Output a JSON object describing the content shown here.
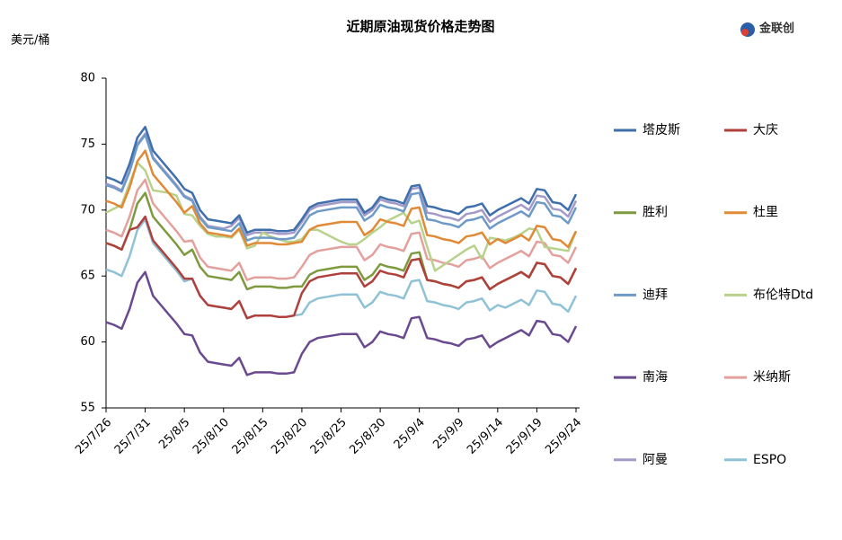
{
  "chart_data": {
    "type": "line",
    "title": "近期原油现货价格走势图",
    "y_label": "美元/桶",
    "logo": "金联创",
    "categories": [
      "25/7/26",
      null,
      null,
      null,
      null,
      "25/7/31",
      null,
      null,
      null,
      null,
      "25/8/5",
      null,
      null,
      null,
      null,
      "25/8/10",
      null,
      null,
      null,
      null,
      "25/8/15",
      null,
      null,
      null,
      null,
      "25/8/20",
      null,
      null,
      null,
      null,
      "25/8/25",
      null,
      null,
      null,
      null,
      "25/8/30",
      null,
      null,
      null,
      null,
      "25/9/4",
      null,
      null,
      null,
      null,
      "25/9/9",
      null,
      null,
      null,
      null,
      "25/9/14",
      null,
      null,
      null,
      null,
      "25/9/19",
      null,
      null,
      null,
      null,
      "25/9/24"
    ],
    "ylim": [
      55,
      80
    ],
    "yticks": [
      55,
      60,
      65,
      70,
      75,
      80
    ],
    "grid": false,
    "legend": "right",
    "series": [
      {
        "name": "塔皮斯",
        "color": "#3f6fad",
        "values": [
          72.5,
          72.3,
          72.0,
          73.5,
          75.5,
          76.3,
          74.5,
          73.8,
          73.1,
          72.4,
          71.6,
          71.3,
          70.0,
          69.3,
          69.2,
          69.1,
          69.0,
          69.6,
          68.3,
          68.5,
          68.5,
          68.5,
          68.4,
          68.4,
          68.5,
          69.3,
          70.2,
          70.5,
          70.6,
          70.7,
          70.8,
          70.8,
          70.8,
          69.8,
          70.2,
          71.0,
          70.8,
          70.7,
          70.5,
          71.8,
          71.9,
          70.3,
          70.2,
          70.0,
          69.9,
          69.7,
          70.2,
          70.3,
          70.5,
          69.6,
          70.0,
          70.3,
          70.6,
          70.9,
          70.5,
          71.6,
          71.5,
          70.6,
          70.5,
          70.0,
          71.2
        ]
      },
      {
        "name": "大庆",
        "color": "#b0403c",
        "values": [
          67.5,
          67.3,
          67.0,
          68.5,
          68.7,
          69.5,
          67.7,
          67.0,
          66.3,
          65.6,
          64.8,
          64.8,
          63.5,
          62.8,
          62.7,
          62.6,
          62.5,
          63.1,
          61.8,
          62.0,
          62.0,
          62.0,
          61.9,
          61.9,
          62.0,
          63.7,
          64.6,
          64.9,
          65.0,
          65.1,
          65.2,
          65.2,
          65.2,
          64.2,
          64.6,
          65.4,
          65.2,
          65.1,
          64.9,
          66.2,
          66.3,
          64.7,
          64.6,
          64.4,
          64.3,
          64.1,
          64.6,
          64.7,
          64.9,
          64.0,
          64.4,
          64.7,
          65.0,
          65.3,
          64.9,
          66.0,
          65.9,
          65.0,
          64.9,
          64.4,
          65.6
        ]
      },
      {
        "name": "胜利",
        "color": "#7e9a3e",
        "values": [
          67.5,
          67.3,
          67.0,
          68.5,
          70.5,
          71.3,
          69.5,
          68.8,
          68.1,
          67.4,
          66.6,
          67.0,
          65.7,
          65.0,
          64.9,
          64.8,
          64.7,
          65.3,
          64.0,
          64.2,
          64.2,
          64.2,
          64.1,
          64.1,
          64.2,
          64.2,
          65.1,
          65.4,
          65.5,
          65.6,
          65.7,
          65.7,
          65.7,
          64.7,
          65.1,
          65.9,
          65.7,
          65.6,
          65.4,
          66.7,
          66.8,
          64.7,
          64.6,
          64.4,
          64.3,
          64.1,
          64.6,
          64.7,
          64.9,
          64.0,
          64.4,
          64.7,
          65.0,
          65.3,
          64.9,
          66.0,
          65.9,
          65.0,
          64.9,
          64.4,
          65.6
        ]
      },
      {
        "name": "杜里",
        "color": "#e08a37",
        "values": [
          70.7,
          70.5,
          70.2,
          71.7,
          73.7,
          74.5,
          72.7,
          72.0,
          71.3,
          70.6,
          69.8,
          70.3,
          69.0,
          68.3,
          68.2,
          68.1,
          68.0,
          68.6,
          67.3,
          67.5,
          67.5,
          67.5,
          67.4,
          67.4,
          67.5,
          67.6,
          68.5,
          68.8,
          68.9,
          69.0,
          69.1,
          69.1,
          69.1,
          68.1,
          68.5,
          69.3,
          69.1,
          69.0,
          68.8,
          70.1,
          70.2,
          68.1,
          68.0,
          67.8,
          67.7,
          67.5,
          68.0,
          68.1,
          68.3,
          67.4,
          67.8,
          67.5,
          67.8,
          68.1,
          67.7,
          68.8,
          68.7,
          67.8,
          67.7,
          67.2,
          68.4
        ]
      },
      {
        "name": "迪拜",
        "color": "#6d9ac6",
        "values": [
          71.9,
          71.7,
          71.4,
          72.9,
          74.9,
          75.7,
          73.9,
          73.2,
          72.5,
          71.8,
          71.0,
          70.7,
          69.4,
          68.7,
          68.6,
          68.5,
          68.4,
          69.0,
          67.7,
          67.9,
          67.9,
          67.9,
          67.8,
          67.8,
          67.9,
          68.7,
          69.6,
          69.9,
          70.0,
          70.1,
          70.2,
          70.2,
          70.2,
          69.2,
          69.6,
          70.4,
          70.2,
          70.1,
          69.9,
          71.2,
          71.3,
          69.3,
          69.2,
          69.0,
          68.9,
          68.7,
          69.2,
          69.3,
          69.5,
          68.6,
          69.0,
          69.3,
          69.6,
          69.9,
          69.5,
          70.6,
          70.5,
          69.6,
          69.5,
          69.0,
          70.2
        ]
      },
      {
        "name": "布伦特Dtd",
        "color": "#b8d28c",
        "values": [
          69.8,
          70.1,
          70.4,
          72.0,
          73.6,
          73.0,
          71.5,
          71.4,
          71.3,
          71.1,
          69.7,
          69.6,
          68.8,
          68.2,
          68.0,
          68.0,
          67.9,
          68.5,
          67.1,
          67.3,
          68.3,
          68.0,
          67.8,
          67.6,
          67.6,
          67.8,
          68.5,
          68.5,
          68.2,
          67.9,
          67.6,
          67.4,
          67.4,
          67.8,
          68.3,
          68.7,
          69.2,
          69.5,
          69.8,
          69.0,
          69.2,
          67.2,
          65.4,
          65.8,
          66.2,
          66.6,
          67.0,
          67.3,
          66.3,
          67.9,
          67.8,
          67.7,
          67.9,
          68.2,
          68.6,
          68.5,
          67.2,
          67.1,
          67.0,
          66.9,
          68.4
        ]
      },
      {
        "name": "南海",
        "color": "#6a4a8f",
        "values": [
          61.5,
          61.3,
          61.0,
          62.5,
          64.5,
          65.3,
          63.5,
          62.8,
          62.1,
          61.4,
          60.6,
          60.5,
          59.2,
          58.5,
          58.4,
          58.3,
          58.2,
          58.8,
          57.5,
          57.7,
          57.7,
          57.7,
          57.6,
          57.6,
          57.7,
          59.1,
          60.0,
          60.3,
          60.4,
          60.5,
          60.6,
          60.6,
          60.6,
          59.6,
          60.0,
          60.8,
          60.6,
          60.5,
          60.3,
          61.8,
          61.9,
          60.3,
          60.2,
          60.0,
          59.9,
          59.7,
          60.2,
          60.3,
          60.5,
          59.6,
          60.0,
          60.3,
          60.6,
          60.9,
          60.5,
          61.6,
          61.5,
          60.6,
          60.5,
          60.0,
          61.2
        ]
      },
      {
        "name": "米纳斯",
        "color": "#e3a09d",
        "values": [
          68.5,
          68.3,
          68.0,
          69.5,
          71.5,
          72.3,
          70.5,
          69.8,
          69.1,
          68.4,
          67.6,
          67.7,
          66.4,
          65.7,
          65.6,
          65.5,
          65.4,
          66.0,
          64.7,
          64.9,
          64.9,
          64.9,
          64.8,
          64.8,
          64.9,
          65.7,
          66.6,
          66.9,
          67.0,
          67.1,
          67.2,
          67.2,
          67.2,
          66.2,
          66.6,
          67.4,
          67.2,
          67.1,
          66.9,
          68.2,
          68.3,
          66.3,
          66.2,
          66.0,
          65.9,
          65.7,
          66.2,
          66.3,
          66.5,
          65.6,
          66.0,
          66.3,
          66.6,
          66.9,
          66.5,
          67.6,
          67.5,
          66.6,
          66.5,
          66.0,
          67.2
        ]
      },
      {
        "name": "阿曼",
        "color": "#a49ac8",
        "values": [
          72.0,
          71.8,
          71.5,
          73.0,
          75.0,
          75.8,
          74.0,
          73.3,
          72.6,
          71.9,
          71.1,
          70.8,
          69.5,
          68.8,
          68.7,
          68.6,
          68.8,
          69.4,
          68.1,
          68.3,
          68.3,
          68.3,
          68.2,
          68.2,
          68.3,
          69.1,
          70.0,
          70.3,
          70.4,
          70.5,
          70.6,
          70.6,
          70.6,
          69.6,
          70.0,
          70.8,
          70.6,
          70.5,
          70.3,
          71.6,
          71.7,
          69.8,
          69.7,
          69.5,
          69.4,
          69.2,
          69.7,
          69.8,
          70.0,
          69.1,
          69.5,
          69.8,
          70.1,
          70.4,
          70.0,
          71.1,
          71.0,
          70.1,
          70.0,
          69.5,
          70.7
        ]
      },
      {
        "name": "ESPO",
        "color": "#8fc2d6",
        "values": [
          65.5,
          65.3,
          65.0,
          66.5,
          68.5,
          69.3,
          67.5,
          66.8,
          66.1,
          65.4,
          64.6,
          64.8,
          63.5,
          62.8,
          62.7,
          62.6,
          62.5,
          63.1,
          61.8,
          62.0,
          62.0,
          62.0,
          61.9,
          61.9,
          62.0,
          62.1,
          63.0,
          63.3,
          63.4,
          63.5,
          63.6,
          63.6,
          63.6,
          62.6,
          63.0,
          63.8,
          63.6,
          63.5,
          63.3,
          64.6,
          64.7,
          63.1,
          63.0,
          62.8,
          62.7,
          62.5,
          63.0,
          63.1,
          63.3,
          62.4,
          62.8,
          62.6,
          62.9,
          63.2,
          62.8,
          63.9,
          63.8,
          62.9,
          62.8,
          62.3,
          63.5
        ]
      }
    ]
  }
}
